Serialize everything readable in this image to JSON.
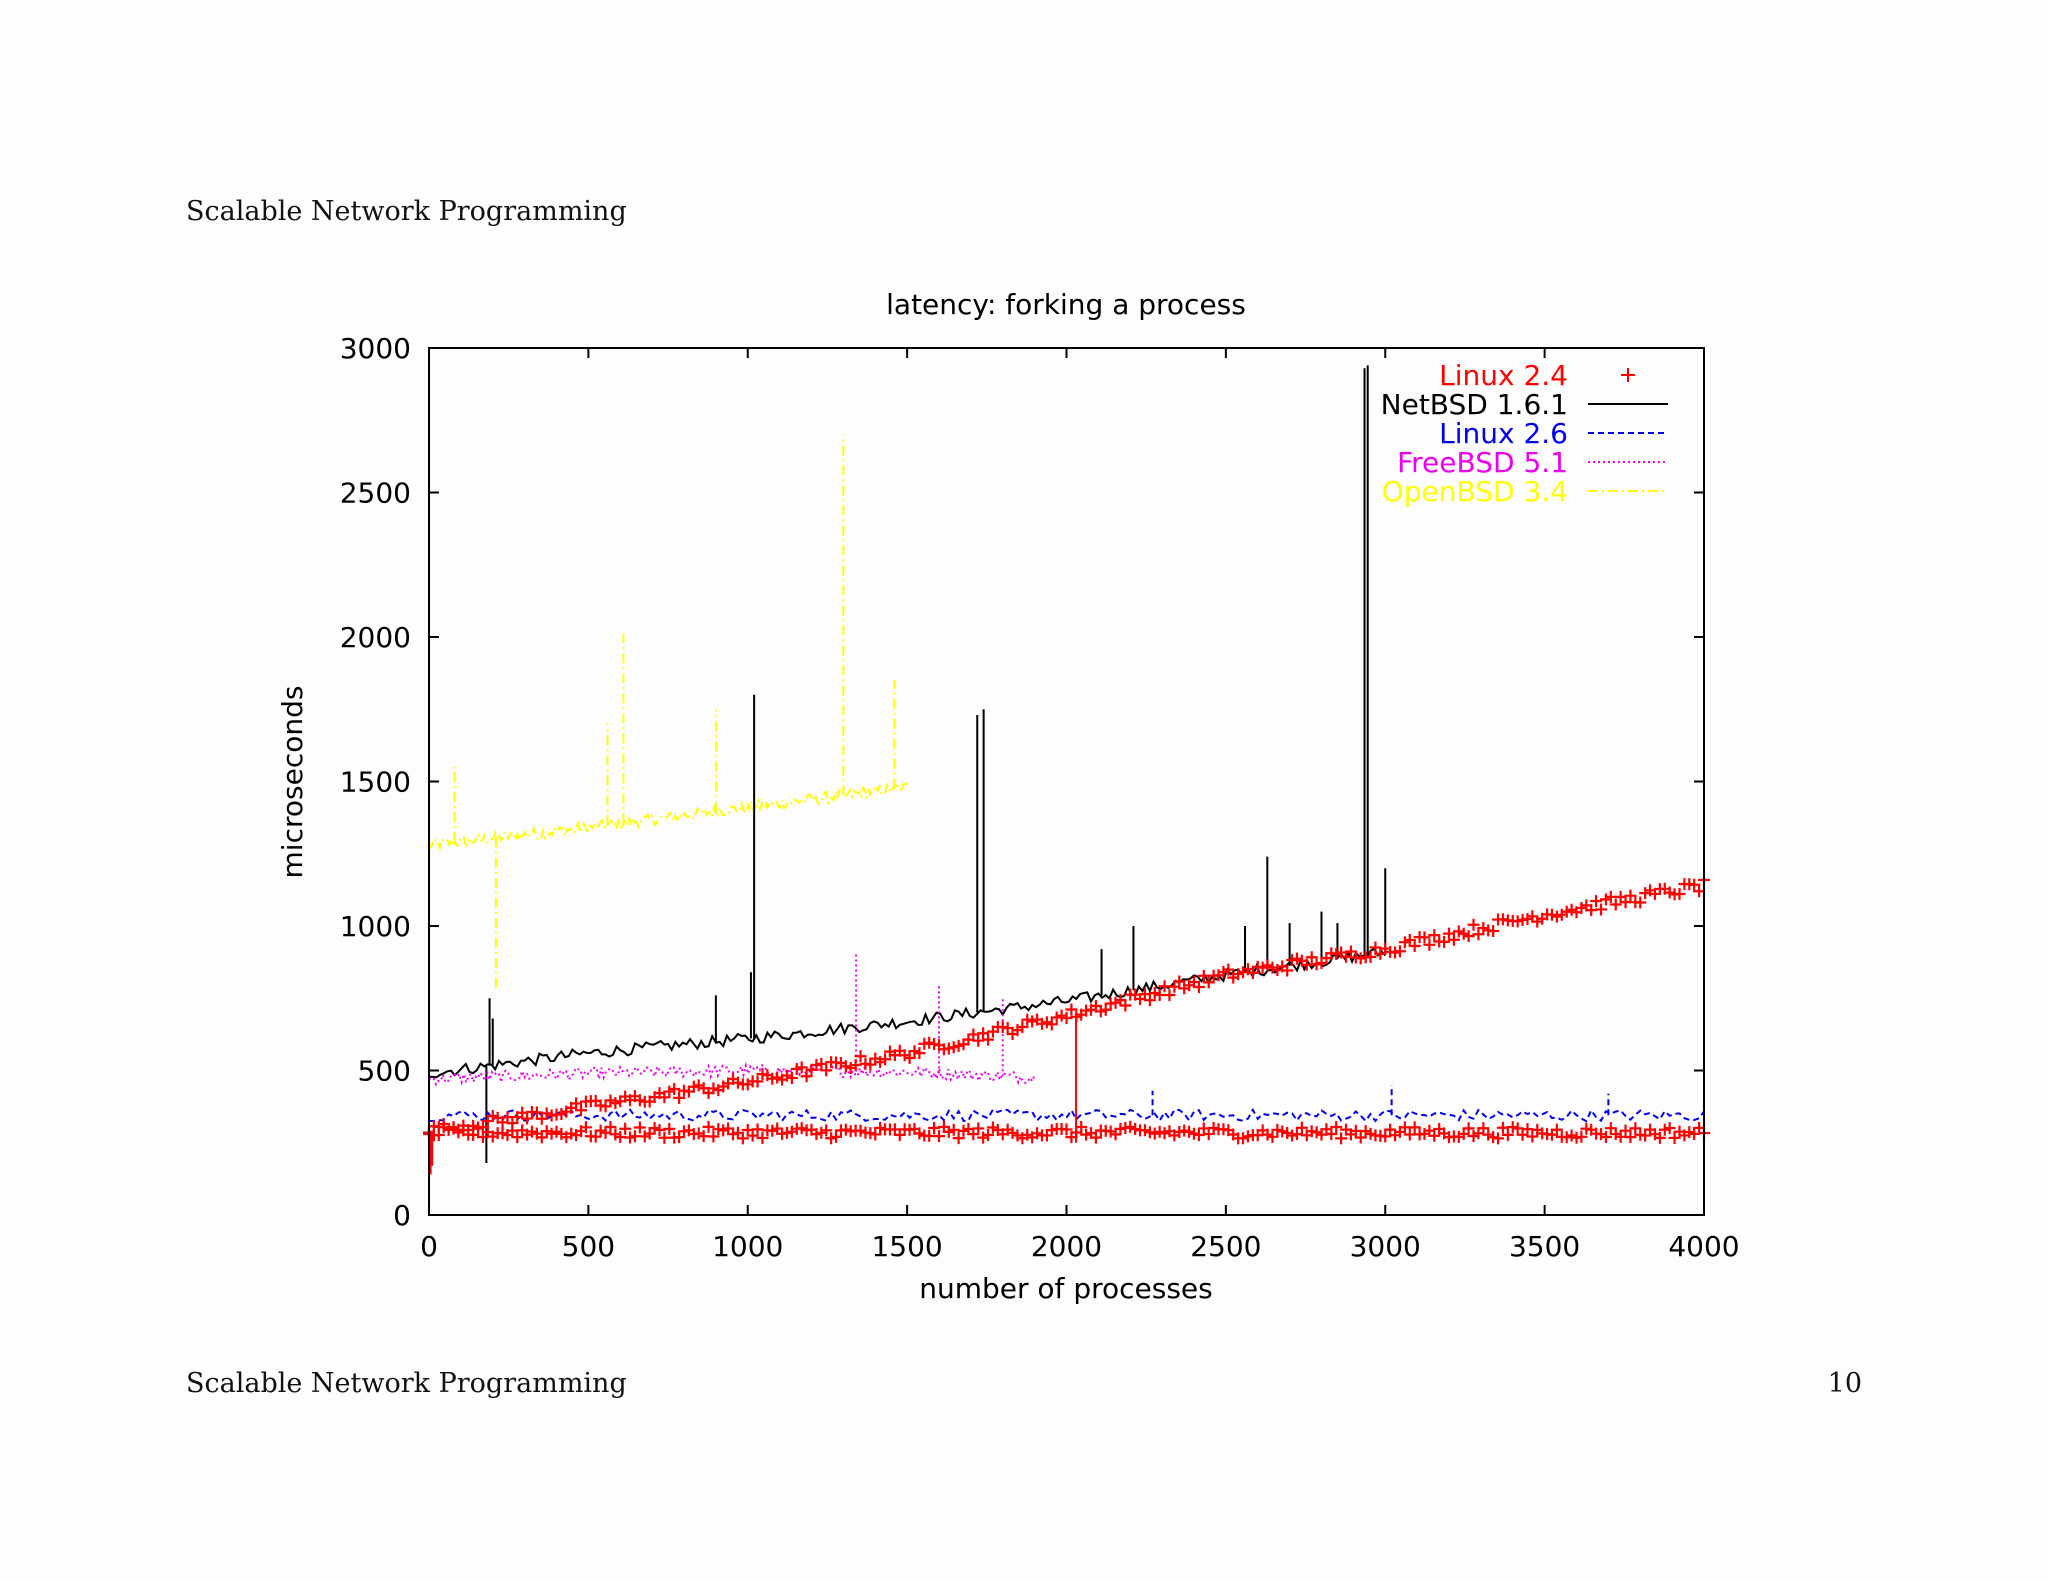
{
  "page": {
    "header": "Scalable Network Programming",
    "footer": "Scalable Network Programming",
    "page_number": "10"
  },
  "colors": {
    "linux24": "#ff0000",
    "netbsd": "#000000",
    "linux26": "#0000ee",
    "freebsd": "#ee00ee",
    "openbsd": "#ffff00"
  },
  "chart_data": {
    "type": "line",
    "title": "latency: forking a process",
    "xlabel": "number of processes",
    "ylabel": "microseconds",
    "xlim": [
      0,
      4000
    ],
    "ylim": [
      0,
      3000
    ],
    "xticks": [
      "0",
      "500",
      "1000",
      "1500",
      "2000",
      "2500",
      "3000",
      "3500",
      "4000"
    ],
    "yticks": [
      "0",
      "500",
      "1000",
      "1500",
      "2000",
      "2500",
      "3000"
    ],
    "legend_position": "top-right",
    "series": [
      {
        "name": "Linux 2.4",
        "style": "points-plus",
        "color": "#ff0000",
        "trends": [
          {
            "x": [
              0,
              1000,
              1500,
              2000,
              2500,
              3000,
              3500,
              4000
            ],
            "y": [
              290,
              460,
              560,
              690,
              830,
              920,
              1040,
              1140
            ]
          },
          {
            "x": [
              0,
              4000
            ],
            "y": [
              285,
              285
            ]
          }
        ],
        "spikes": [
          {
            "x": 5,
            "y": 140
          },
          {
            "x": 10,
            "y": 170
          },
          {
            "x": 2030,
            "y": 250
          }
        ]
      },
      {
        "name": "NetBSD 1.6.1",
        "style": "solid",
        "color": "#000000",
        "trends": [
          {
            "x": [
              0,
              500,
              1000,
              1500,
              2000,
              2500,
              3000
            ],
            "y": [
              490,
              560,
              610,
              670,
              740,
              830,
              910
            ]
          }
        ],
        "spikes": [
          {
            "x": 180,
            "y": 180
          },
          {
            "x": 190,
            "y": 750
          },
          {
            "x": 200,
            "y": 680
          },
          {
            "x": 900,
            "y": 760
          },
          {
            "x": 1010,
            "y": 840
          },
          {
            "x": 1020,
            "y": 1800
          },
          {
            "x": 1720,
            "y": 1730
          },
          {
            "x": 1740,
            "y": 1750
          },
          {
            "x": 2110,
            "y": 920
          },
          {
            "x": 2210,
            "y": 1000
          },
          {
            "x": 2560,
            "y": 1000
          },
          {
            "x": 2630,
            "y": 1240
          },
          {
            "x": 2700,
            "y": 1010
          },
          {
            "x": 2800,
            "y": 1050
          },
          {
            "x": 2850,
            "y": 1010
          },
          {
            "x": 2935,
            "y": 2930
          },
          {
            "x": 2945,
            "y": 2940
          },
          {
            "x": 3000,
            "y": 1200
          }
        ]
      },
      {
        "name": "Linux 2.6",
        "style": "dashed",
        "color": "#0000ee",
        "trends": [
          {
            "x": [
              0,
              4000
            ],
            "y": [
              345,
              345
            ]
          }
        ],
        "spikes": [
          {
            "x": 2270,
            "y": 430
          },
          {
            "x": 3020,
            "y": 450
          },
          {
            "x": 3700,
            "y": 420
          }
        ]
      },
      {
        "name": "FreeBSD 5.1",
        "style": "dotted",
        "color": "#ee00ee",
        "trends": [
          {
            "x": [
              0,
              500,
              1000,
              1500,
              1900
            ],
            "y": [
              470,
              490,
              500,
              495,
              475
            ]
          }
        ],
        "spikes": [
          {
            "x": 1340,
            "y": 910
          },
          {
            "x": 1600,
            "y": 800
          },
          {
            "x": 1800,
            "y": 750
          }
        ]
      },
      {
        "name": "OpenBSD 3.4",
        "style": "dash-dot",
        "color": "#ffff00",
        "trends": [
          {
            "x": [
              0,
              500,
              1000,
              1500
            ],
            "y": [
              1280,
              1340,
              1410,
              1480
            ]
          }
        ],
        "spikes": [
          {
            "x": 80,
            "y": 1550
          },
          {
            "x": 210,
            "y": 780
          },
          {
            "x": 560,
            "y": 1700
          },
          {
            "x": 610,
            "y": 2020
          },
          {
            "x": 900,
            "y": 1750
          },
          {
            "x": 1300,
            "y": 2700
          },
          {
            "x": 1460,
            "y": 1850
          }
        ]
      }
    ]
  }
}
